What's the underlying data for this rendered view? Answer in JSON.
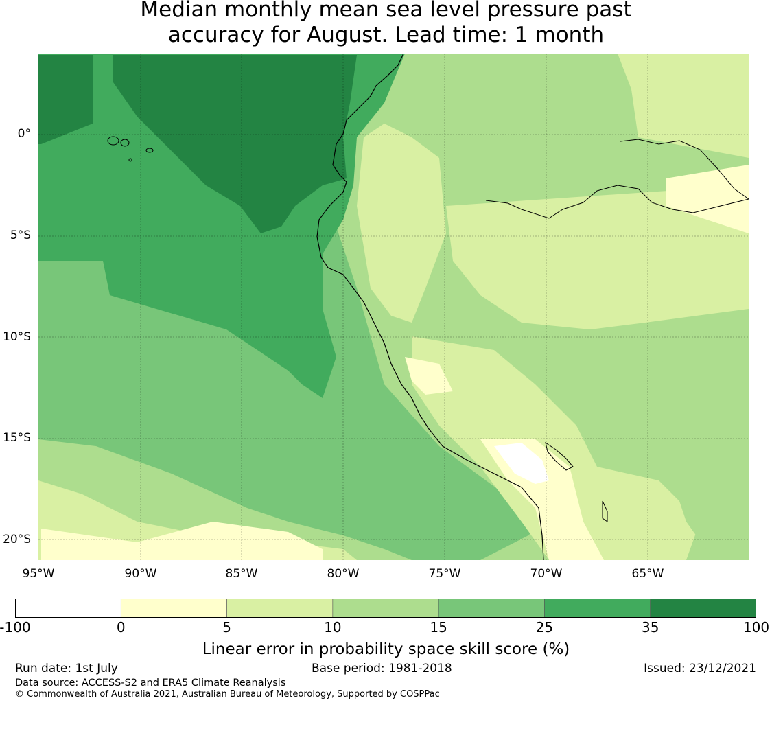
{
  "title_line1": "Median monthly mean sea level pressure past",
  "title_line2": "accuracy for August. Lead time: 1 month",
  "map": {
    "lat_labels": [
      "0°",
      "5°S",
      "10°S",
      "15°S",
      "20°S"
    ],
    "lon_labels": [
      "95°W",
      "90°W",
      "85°W",
      "80°W",
      "75°W",
      "70°W",
      "65°W"
    ],
    "gridlines": true
  },
  "colorbar": {
    "ticks": [
      "-100",
      "0",
      "5",
      "10",
      "15",
      "25",
      "35",
      "100"
    ],
    "colors": [
      "#ffffff",
      "#ffffcc",
      "#d9f0a3",
      "#addd8e",
      "#78c679",
      "#41ab5d",
      "#238443"
    ],
    "label": "Linear error in probability space skill score (%)"
  },
  "footer": {
    "run_date": "Run date: 1st July",
    "base_period": "Base period: 1981-2018",
    "issued": "Issued: 23/12/2021",
    "data_source": "Data source: ACCESS-S2 and ERA5 Climate Reanalysis",
    "copyright": "© Commonwealth of Australia 2021, Australian Bureau of Meteorology, Supported by COSPPac"
  }
}
